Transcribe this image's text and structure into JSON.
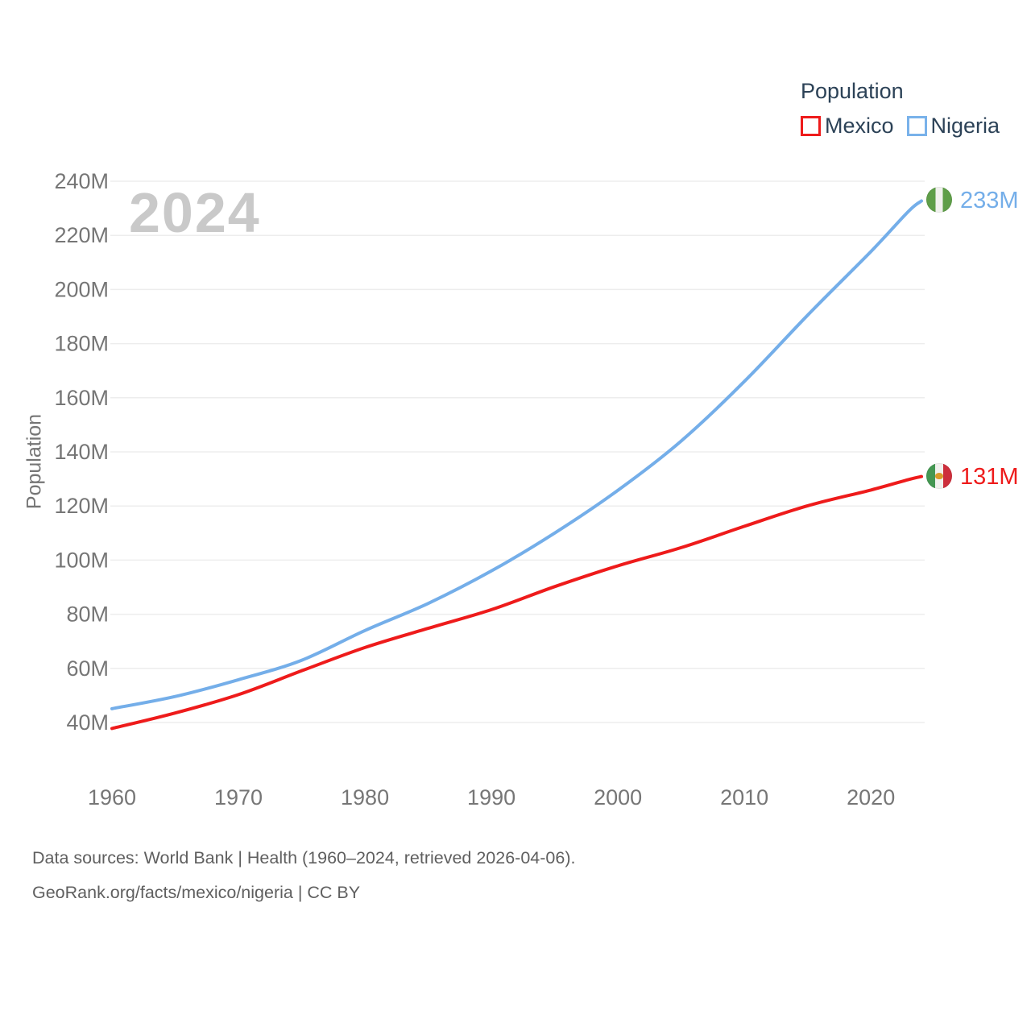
{
  "legend": {
    "title": "Population",
    "items": [
      {
        "label": "Mexico",
        "color": "#ee1b1b"
      },
      {
        "label": "Nigeria",
        "color": "#79b2ea"
      }
    ]
  },
  "watermark": "2024",
  "footer": {
    "line1": "Data sources: World Bank | Health (1960–2024, retrieved 2026-04-06).",
    "line2": "GeoRank.org/facts/mexico/nigeria | CC BY"
  },
  "chart_data": {
    "type": "line",
    "title": "Population",
    "xlabel": "",
    "ylabel": "Population",
    "x": [
      1960,
      1965,
      1970,
      1975,
      1980,
      1985,
      1990,
      1995,
      2000,
      2005,
      2010,
      2015,
      2020,
      2023,
      2024
    ],
    "series": [
      {
        "name": "Mexico",
        "color": "#ee1b1b",
        "values": [
          37.8,
          43.5,
          50.3,
          59.1,
          67.7,
          74.8,
          81.7,
          90.2,
          97.9,
          104.6,
          112.5,
          120.1,
          125.9,
          129.8,
          130.9
        ],
        "end_label": "131M",
        "flag": "mexico-flag-icon"
      },
      {
        "name": "Nigeria",
        "color": "#74aee9",
        "values": [
          45.1,
          49.6,
          55.8,
          63.0,
          74.0,
          84.0,
          96.0,
          110.0,
          125.8,
          144.0,
          166.0,
          190.5,
          214.0,
          229.0,
          232.7
        ],
        "end_label": "233M",
        "flag": "nigeria-flag-icon"
      }
    ],
    "xticks": [
      {
        "v": 1960,
        "label": "1960"
      },
      {
        "v": 1970,
        "label": "1970"
      },
      {
        "v": 1980,
        "label": "1980"
      },
      {
        "v": 1990,
        "label": "1990"
      },
      {
        "v": 2000,
        "label": "2000"
      },
      {
        "v": 2010,
        "label": "2010"
      },
      {
        "v": 2020,
        "label": "2020"
      }
    ],
    "yticks": [
      {
        "v": 40,
        "label": "40M"
      },
      {
        "v": 60,
        "label": "60M"
      },
      {
        "v": 80,
        "label": "80M"
      },
      {
        "v": 100,
        "label": "100M"
      },
      {
        "v": 120,
        "label": "120M"
      },
      {
        "v": 140,
        "label": "140M"
      },
      {
        "v": 160,
        "label": "160M"
      },
      {
        "v": 180,
        "label": "180M"
      },
      {
        "v": 200,
        "label": "200M"
      },
      {
        "v": 220,
        "label": "220M"
      },
      {
        "v": 240,
        "label": "240M"
      }
    ],
    "xlim": [
      1960,
      2024
    ],
    "ylim": [
      28,
      248
    ],
    "grid": "horizontal",
    "legend_position": "top-right"
  }
}
